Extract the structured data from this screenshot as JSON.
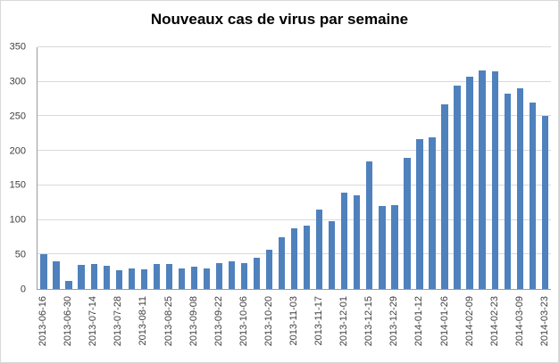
{
  "chart_data": {
    "type": "bar",
    "title": "Nouveaux cas de virus par semaine",
    "xlabel": "",
    "ylabel": "",
    "categories": [
      "2013-06-16",
      "2013-06-23",
      "2013-06-30",
      "2013-07-07",
      "2013-07-14",
      "2013-07-21",
      "2013-07-28",
      "2013-08-04",
      "2013-08-11",
      "2013-08-18",
      "2013-08-25",
      "2013-09-01",
      "2013-09-08",
      "2013-09-15",
      "2013-09-22",
      "2013-09-29",
      "2013-10-06",
      "2013-10-13",
      "2013-10-20",
      "2013-10-27",
      "2013-11-03",
      "2013-11-10",
      "2013-11-17",
      "2013-11-24",
      "2013-12-01",
      "2013-12-08",
      "2013-12-15",
      "2013-12-22",
      "2013-12-29",
      "2014-01-05",
      "2014-01-12",
      "2014-01-19",
      "2014-01-26",
      "2014-02-02",
      "2014-02-09",
      "2014-02-16",
      "2014-02-23",
      "2014-03-02",
      "2014-03-09",
      "2014-03-16",
      "2014-03-23"
    ],
    "values": [
      50,
      40,
      12,
      35,
      36,
      33,
      27,
      30,
      28,
      36,
      36,
      30,
      32,
      30,
      38,
      40,
      38,
      45,
      57,
      75,
      88,
      92,
      115,
      98,
      140,
      135,
      185,
      120,
      122,
      190,
      217,
      220,
      268,
      295,
      307,
      317,
      315,
      283,
      291,
      270,
      250
    ],
    "visible_x_tick_labels": [
      "2013-06-16",
      "2013-06-30",
      "2013-07-14",
      "2013-07-28",
      "2013-08-11",
      "2013-08-25",
      "2013-09-08",
      "2013-09-22",
      "2013-10-06",
      "2013-10-20",
      "2013-11-03",
      "2013-11-17",
      "2013-12-01",
      "2013-12-15",
      "2013-12-29",
      "2014-01-12",
      "2014-01-26",
      "2014-02-09",
      "2014-02-23",
      "2014-03-09",
      "2014-03-23"
    ],
    "xtick_every": 2,
    "ylim": [
      0,
      350
    ],
    "yticks": [
      0,
      50,
      100,
      150,
      200,
      250,
      300,
      350
    ],
    "grid": true,
    "legend": "none",
    "bar_color": "#4f81bd",
    "gridline_color": "#d9d9d9",
    "axis_color": "#9c9c9c",
    "tick_text_color": "#3f3f3f"
  }
}
